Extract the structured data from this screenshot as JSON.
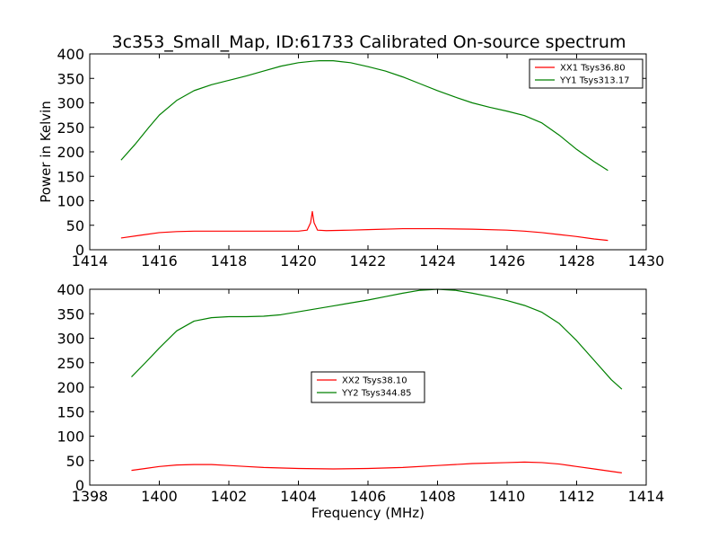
{
  "figure": {
    "title": "3c353_Small_Map, ID:61733 Calibrated On-source spectrum"
  },
  "colors": {
    "series_red": "#ff0000",
    "series_green": "#008000",
    "axes": "#000000",
    "background": "#ffffff"
  },
  "chart_data": [
    {
      "type": "line",
      "title": "3c353_Small_Map, ID:61733 Calibrated On-source spectrum",
      "xlabel": "",
      "ylabel": "Power in Kelvin",
      "xlim": [
        1414,
        1430
      ],
      "ylim": [
        0,
        400
      ],
      "xticks": [
        1414,
        1416,
        1418,
        1420,
        1422,
        1424,
        1426,
        1428,
        1430
      ],
      "yticks": [
        0,
        50,
        100,
        150,
        200,
        250,
        300,
        350,
        400
      ],
      "grid": false,
      "legend_position": "upper right",
      "series": [
        {
          "name": "XX1 Tsys36.80",
          "color": "#ff0000",
          "x": [
            1414.9,
            1415.5,
            1416.0,
            1416.5,
            1417.0,
            1418.0,
            1419.0,
            1420.0,
            1420.25,
            1420.35,
            1420.4,
            1420.45,
            1420.55,
            1420.8,
            1421.5,
            1422.0,
            1423.0,
            1424.0,
            1425.0,
            1426.0,
            1426.5,
            1427.0,
            1427.5,
            1428.0,
            1428.5,
            1428.9
          ],
          "values": [
            24,
            30,
            35,
            37,
            38,
            38,
            38,
            38,
            40,
            55,
            78,
            55,
            40,
            39,
            40,
            41,
            43,
            43,
            42,
            40,
            38,
            35,
            31,
            27,
            22,
            19
          ]
        },
        {
          "name": "YY1 Tsys313.17",
          "color": "#008000",
          "x": [
            1414.9,
            1415.3,
            1415.7,
            1416.0,
            1416.5,
            1417.0,
            1417.5,
            1418.0,
            1418.5,
            1419.0,
            1419.5,
            1420.0,
            1420.4,
            1420.6,
            1421.0,
            1421.5,
            1422.0,
            1422.5,
            1423.0,
            1423.5,
            1424.0,
            1424.5,
            1425.0,
            1425.5,
            1426.0,
            1426.5,
            1427.0,
            1427.5,
            1428.0,
            1428.5,
            1428.9
          ],
          "values": [
            183,
            215,
            250,
            275,
            305,
            325,
            337,
            346,
            355,
            365,
            375,
            382,
            385,
            386,
            386,
            382,
            374,
            365,
            353,
            339,
            325,
            312,
            300,
            291,
            283,
            274,
            259,
            234,
            205,
            180,
            162
          ]
        }
      ]
    },
    {
      "type": "line",
      "title": "",
      "xlabel": "Frequency (MHz)",
      "ylabel": "",
      "xlim": [
        1398,
        1414
      ],
      "ylim": [
        0,
        400
      ],
      "xticks": [
        1398,
        1400,
        1402,
        1404,
        1406,
        1408,
        1410,
        1412,
        1414
      ],
      "yticks": [
        0,
        50,
        100,
        150,
        200,
        250,
        300,
        350,
        400
      ],
      "grid": false,
      "legend_position": "center",
      "series": [
        {
          "name": "XX2 Tsys38.10",
          "color": "#ff0000",
          "x": [
            1399.2,
            1399.6,
            1400.0,
            1400.5,
            1401.0,
            1401.5,
            1402.0,
            1402.5,
            1403.0,
            1404.0,
            1405.0,
            1406.0,
            1407.0,
            1408.0,
            1409.0,
            1410.0,
            1410.5,
            1411.0,
            1411.5,
            1412.0,
            1412.5,
            1413.0,
            1413.3
          ],
          "values": [
            30,
            34,
            38,
            41,
            42,
            42,
            40,
            38,
            36,
            34,
            33,
            34,
            36,
            40,
            44,
            46,
            47,
            46,
            43,
            38,
            33,
            28,
            25
          ]
        },
        {
          "name": "YY2 Tsys344.85",
          "color": "#008000",
          "x": [
            1399.2,
            1399.6,
            1400.0,
            1400.5,
            1401.0,
            1401.5,
            1402.0,
            1402.5,
            1403.0,
            1403.5,
            1404.0,
            1404.5,
            1405.0,
            1405.5,
            1406.0,
            1406.5,
            1407.0,
            1407.5,
            1408.0,
            1408.5,
            1409.0,
            1409.5,
            1410.0,
            1410.5,
            1411.0,
            1411.5,
            1412.0,
            1412.5,
            1413.0,
            1413.3
          ],
          "values": [
            221,
            250,
            280,
            315,
            335,
            342,
            344,
            344,
            345,
            348,
            354,
            360,
            366,
            372,
            378,
            385,
            392,
            398,
            400,
            398,
            392,
            385,
            377,
            367,
            353,
            330,
            295,
            255,
            215,
            196
          ]
        }
      ]
    }
  ]
}
